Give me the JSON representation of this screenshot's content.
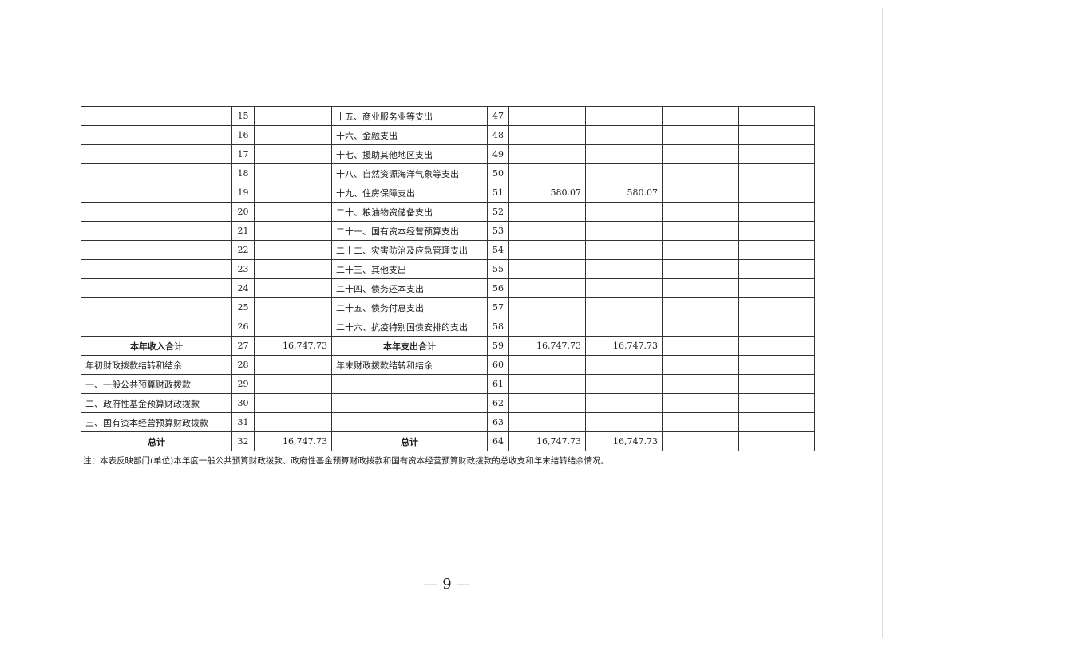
{
  "table": {
    "rows": [
      [
        null,
        "15",
        null,
        "十五、商业服务业等支出",
        "47",
        null,
        null,
        null,
        null
      ],
      [
        null,
        "16",
        null,
        "十六、金融支出",
        "48",
        null,
        null,
        null,
        null
      ],
      [
        null,
        "17",
        null,
        "十七、援助其他地区支出",
        "49",
        null,
        null,
        null,
        null
      ],
      [
        null,
        "18",
        null,
        "十八、自然资源海洋气象等支出",
        "50",
        null,
        null,
        null,
        null
      ],
      [
        null,
        "19",
        null,
        "十九、住房保障支出",
        "51",
        "580.07",
        "580.07",
        null,
        null
      ],
      [
        null,
        "20",
        null,
        "二十、粮油物资储备支出",
        "52",
        null,
        null,
        null,
        null
      ],
      [
        null,
        "21",
        null,
        "二十一、国有资本经营预算支出",
        "53",
        null,
        null,
        null,
        null
      ],
      [
        null,
        "22",
        null,
        "二十二、灾害防治及应急管理支出",
        "54",
        null,
        null,
        null,
        null
      ],
      [
        null,
        "23",
        null,
        "二十三、其他支出",
        "55",
        null,
        null,
        null,
        null
      ],
      [
        null,
        "24",
        null,
        "二十四、债务还本支出",
        "56",
        null,
        null,
        null,
        null
      ],
      [
        null,
        "25",
        null,
        "二十五、债务付息支出",
        "57",
        null,
        null,
        null,
        null
      ],
      [
        null,
        "26",
        null,
        "二十六、抗疫特别国债安排的支出",
        "58",
        null,
        null,
        null,
        null
      ],
      [
        "本年收入合计",
        "27",
        "16,747.73",
        "本年支出合计",
        "59",
        "16,747.73",
        "16,747.73",
        null,
        null
      ],
      [
        "年初财政拨款结转和结余",
        "28",
        null,
        "年末财政拨款结转和结余",
        "60",
        null,
        null,
        null,
        null
      ],
      [
        "一、一般公共预算财政拨款",
        "29",
        null,
        null,
        "61",
        null,
        null,
        null,
        null
      ],
      [
        "二、政府性基金预算财政拨款",
        "30",
        null,
        null,
        "62",
        null,
        null,
        null,
        null
      ],
      [
        "三、国有资本经营预算财政拨款",
        "31",
        null,
        null,
        "63",
        null,
        null,
        null,
        null
      ],
      [
        "总计",
        "32",
        "16,747.73",
        "总计",
        "64",
        "16,747.73",
        "16,747.73",
        null,
        null
      ]
    ]
  },
  "note": "注：本表反映部门(单位)本年度一般公共预算财政拨款、政府性基金预算财政拨款和国有资本经营预算财政拨款的总收支和年末结转结余情况。",
  "page_number": "— 9 —"
}
